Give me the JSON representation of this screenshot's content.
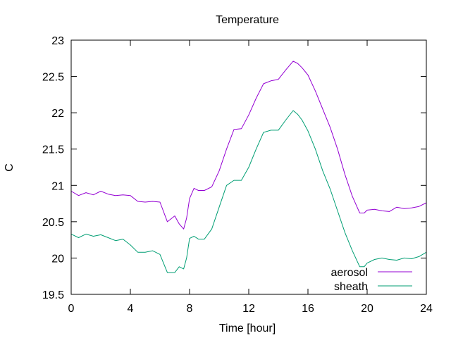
{
  "chart_data": {
    "type": "line",
    "title": "Temperature",
    "xlabel": "Time [hour]",
    "ylabel": "C",
    "xlim": [
      0,
      24
    ],
    "ylim": [
      19.5,
      23
    ],
    "xticks": [
      "0",
      "4",
      "8",
      "12",
      "16",
      "20",
      "24"
    ],
    "yticks": [
      "19.5",
      "20",
      "20.5",
      "21",
      "21.5",
      "22",
      "22.5",
      "23"
    ],
    "grid": false,
    "legend_position": "bottom-right",
    "series": [
      {
        "name": "aerosol",
        "color": "#9400d3",
        "x": [
          0,
          0.5,
          1,
          1.5,
          2,
          2.5,
          3,
          3.5,
          4,
          4.5,
          5,
          5.5,
          6,
          6.5,
          7,
          7.3,
          7.6,
          7.8,
          8,
          8.3,
          8.6,
          9,
          9.5,
          10,
          10.5,
          11,
          11.5,
          12,
          12.5,
          13,
          13.5,
          14,
          14.5,
          15,
          15.3,
          15.6,
          16,
          16.5,
          17,
          17.5,
          18,
          18.5,
          19,
          19.5,
          19.8,
          20,
          20.5,
          21,
          21.5,
          22,
          22.5,
          23,
          23.5,
          24
        ],
        "y": [
          20.92,
          20.86,
          20.9,
          20.87,
          20.92,
          20.88,
          20.86,
          20.87,
          20.86,
          20.78,
          20.77,
          20.78,
          20.77,
          20.5,
          20.58,
          20.47,
          20.4,
          20.55,
          20.82,
          20.96,
          20.93,
          20.93,
          20.98,
          21.2,
          21.5,
          21.77,
          21.78,
          21.97,
          22.2,
          22.4,
          22.44,
          22.46,
          22.59,
          22.71,
          22.68,
          22.62,
          22.52,
          22.3,
          22.05,
          21.8,
          21.5,
          21.15,
          20.85,
          20.62,
          20.62,
          20.66,
          20.67,
          20.65,
          20.64,
          20.7,
          20.68,
          20.69,
          20.71,
          20.76
        ]
      },
      {
        "name": "sheath",
        "color": "#009e73",
        "x": [
          0,
          0.5,
          1,
          1.5,
          2,
          2.5,
          3,
          3.5,
          4,
          4.5,
          5,
          5.5,
          6,
          6.5,
          7,
          7.3,
          7.6,
          7.8,
          8,
          8.3,
          8.6,
          9,
          9.5,
          10,
          10.5,
          11,
          11.5,
          12,
          12.5,
          13,
          13.5,
          14,
          14.5,
          15,
          15.3,
          15.6,
          16,
          16.5,
          17,
          17.5,
          18,
          18.5,
          19,
          19.5,
          19.8,
          20,
          20.5,
          21,
          21.5,
          22,
          22.5,
          23,
          23.5,
          24
        ],
        "y": [
          20.33,
          20.28,
          20.33,
          20.3,
          20.32,
          20.28,
          20.24,
          20.26,
          20.18,
          20.08,
          20.08,
          20.1,
          20.05,
          19.8,
          19.8,
          19.88,
          19.85,
          20.0,
          20.27,
          20.3,
          20.26,
          20.26,
          20.4,
          20.7,
          21.0,
          21.07,
          21.07,
          21.25,
          21.5,
          21.73,
          21.76,
          21.76,
          21.9,
          22.03,
          21.98,
          21.9,
          21.75,
          21.5,
          21.2,
          20.95,
          20.65,
          20.35,
          20.1,
          19.88,
          19.88,
          19.93,
          19.98,
          20.0,
          19.98,
          19.97,
          20.0,
          19.99,
          20.02,
          20.08
        ]
      }
    ]
  }
}
